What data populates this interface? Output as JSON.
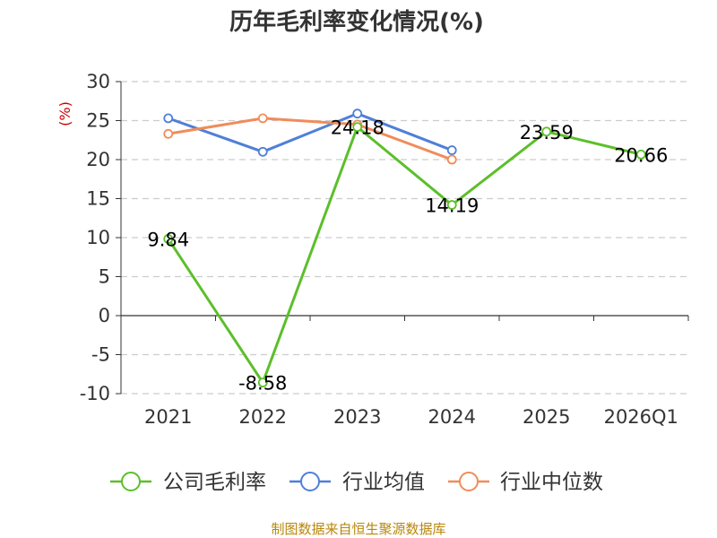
{
  "chart_data": {
    "type": "line",
    "title": "历年毛利率变化情况(%)",
    "ylabel": "(%)",
    "xlabel": "",
    "categories": [
      "2021",
      "2022",
      "2023",
      "2024",
      "2025",
      "2026Q1"
    ],
    "ylim": [
      -10,
      30
    ],
    "yticks": [
      30,
      25,
      20,
      15,
      10,
      5,
      0,
      -5,
      -10
    ],
    "grid": true,
    "legend_position": "bottom",
    "series": [
      {
        "name": "公司毛利率",
        "color": "#5bbf2a",
        "values": [
          9.84,
          -8.58,
          24.18,
          14.19,
          23.59,
          20.66
        ],
        "labels": [
          "9.84",
          "-8.58",
          "24.18",
          "14.19",
          "23.59",
          "20.66"
        ]
      },
      {
        "name": "行业均值",
        "color": "#4f7fd8",
        "values": [
          25.3,
          21.0,
          25.9,
          21.2,
          null,
          null
        ]
      },
      {
        "name": "行业中位数",
        "color": "#f08c5a",
        "values": [
          23.3,
          25.3,
          24.5,
          20.0,
          null,
          null
        ]
      }
    ]
  },
  "source_text": "制图数据来自恒生聚源数据库"
}
